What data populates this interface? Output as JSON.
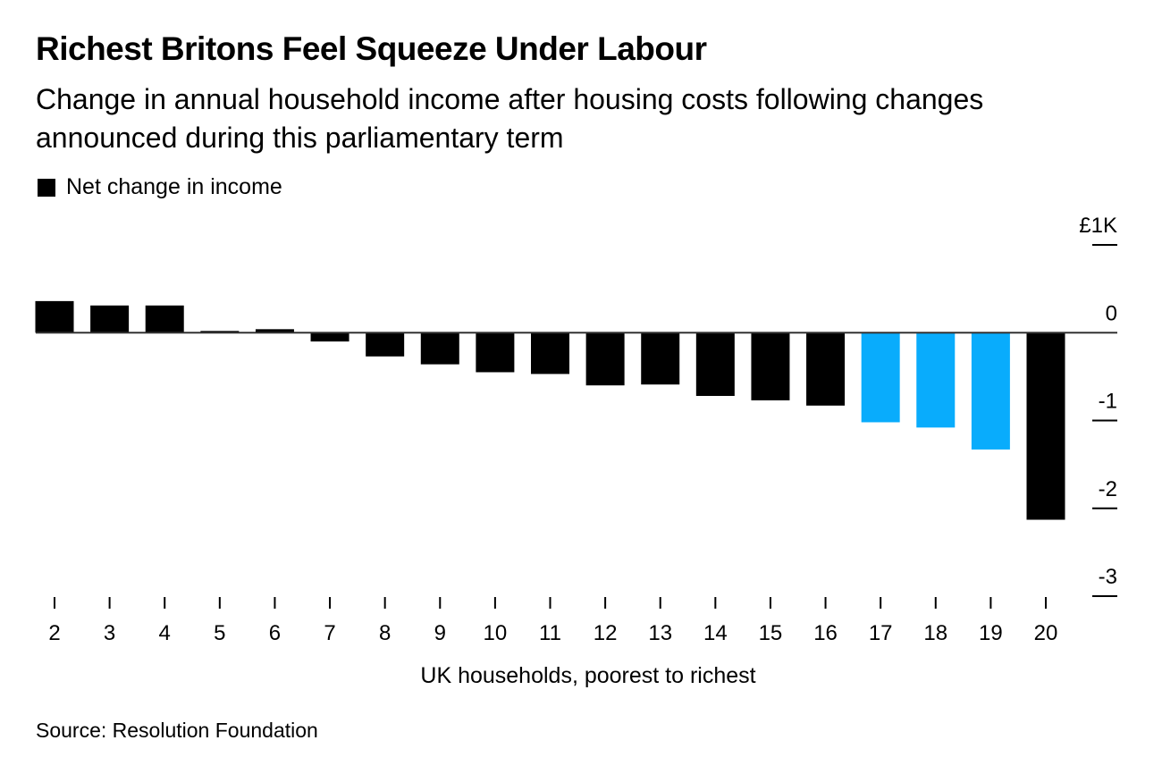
{
  "chart_data": {
    "type": "bar",
    "title": "Richest Britons Feel Squeeze Under Labour",
    "subtitle": "Change in annual household income after housing costs following changes announced during this parliamentary term",
    "legend": [
      "Net change in income"
    ],
    "legend_placement": "top-left",
    "xlabel": "UK households, poorest to richest",
    "ylabel": "",
    "y_unit_label": "£1K",
    "categories": [
      "2",
      "3",
      "4",
      "5",
      "6",
      "7",
      "8",
      "9",
      "10",
      "11",
      "12",
      "13",
      "14",
      "15",
      "16",
      "17",
      "18",
      "19",
      "20"
    ],
    "values": [
      0.36,
      0.31,
      0.31,
      0.02,
      0.04,
      -0.1,
      -0.27,
      -0.36,
      -0.45,
      -0.47,
      -0.6,
      -0.59,
      -0.72,
      -0.77,
      -0.83,
      -1.02,
      -1.08,
      -1.33,
      -2.13
    ],
    "highlighted": [
      "17",
      "18",
      "19"
    ],
    "ylim": [
      -3,
      1
    ],
    "yticks": [
      1,
      0,
      -1,
      -2,
      -3
    ],
    "ytick_labels": [
      "£1K",
      "0",
      "-1",
      "-2",
      "-3"
    ],
    "grid": false,
    "colors": {
      "default": "#000000",
      "highlight": "#09acfc",
      "axis": "#333333"
    },
    "source": "Source: Resolution Foundation"
  }
}
